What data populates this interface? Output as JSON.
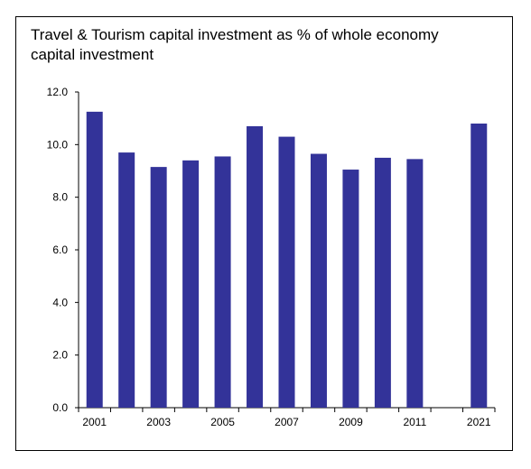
{
  "chart_data": {
    "type": "bar",
    "title": "Travel & Tourism capital investment as % of whole economy capital investment",
    "categories": [
      "2001",
      "2002",
      "2003",
      "2004",
      "2005",
      "2006",
      "2007",
      "2008",
      "2009",
      "2010",
      "2011",
      "2012",
      "2021"
    ],
    "x_tick_labels": [
      "2001",
      "",
      "2003",
      "",
      "2005",
      "",
      "2007",
      "",
      "2009",
      "",
      "2011",
      "",
      "2021"
    ],
    "values": [
      11.25,
      9.7,
      9.15,
      9.4,
      9.55,
      10.7,
      10.3,
      9.65,
      9.05,
      9.5,
      9.45,
      null,
      10.8
    ],
    "y_tick_labels": [
      "0.0",
      "2.0",
      "4.0",
      "6.0",
      "8.0",
      "10.0",
      "12.0"
    ],
    "ylim": [
      0,
      12
    ],
    "xlabel": "",
    "ylabel": "",
    "grid": false,
    "legend": "none",
    "bar_color": "#333399"
  }
}
